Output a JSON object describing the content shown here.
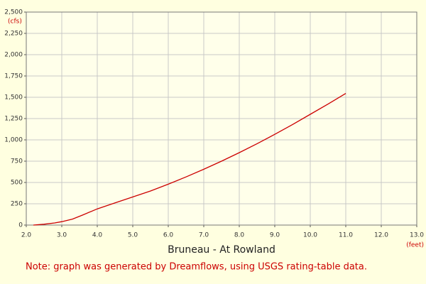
{
  "chart_data": {
    "type": "line",
    "title": "Bruneau - At Rowland",
    "x_unit": "(feet)",
    "y_unit": "(cfs)",
    "note": "Note: graph was generated by Dreamflows, using USGS rating-table data.",
    "x": [
      2.2,
      2.5,
      2.8,
      3.0,
      3.3,
      3.6,
      4.0,
      4.5,
      5.0,
      5.5,
      6.0,
      6.5,
      7.0,
      7.5,
      8.0,
      8.5,
      9.0,
      9.5,
      10.0,
      10.5,
      11.0
    ],
    "series": [
      {
        "color": "#cc0000",
        "values": [
          0,
          10,
          25,
          40,
          70,
          120,
          190,
          260,
          330,
          400,
          480,
          565,
          655,
          750,
          850,
          955,
          1065,
          1180,
          1300,
          1420,
          1545
        ]
      }
    ],
    "xlim": [
      2,
      13
    ],
    "xticks": [
      {
        "value": 2,
        "label": "2.0"
      },
      {
        "value": 3,
        "label": "3.0"
      },
      {
        "value": 4,
        "label": "4.0"
      },
      {
        "value": 5,
        "label": "5.0"
      },
      {
        "value": 6,
        "label": "6.0"
      },
      {
        "value": 7,
        "label": "7.0"
      },
      {
        "value": 8,
        "label": "8.0"
      },
      {
        "value": 9,
        "label": "9.0"
      },
      {
        "value": 10,
        "label": "10.0"
      },
      {
        "value": 11,
        "label": "11.0"
      },
      {
        "value": 12,
        "label": "12.0"
      },
      {
        "value": 13,
        "label": "13.0"
      }
    ],
    "ylim": [
      0,
      2500
    ],
    "yticks": [
      0,
      250,
      500,
      750,
      {
        "value": 1000,
        "label": "1,000"
      },
      {
        "value": 1250,
        "label": "1,250"
      },
      {
        "value": 1500,
        "label": "1,500"
      },
      {
        "value": 1750,
        "label": "1,750"
      },
      {
        "value": 2000,
        "label": "2,000"
      },
      {
        "value": 2250,
        "label": "2,250"
      },
      {
        "value": 2500,
        "label": "2,500"
      }
    ],
    "grid": true
  }
}
